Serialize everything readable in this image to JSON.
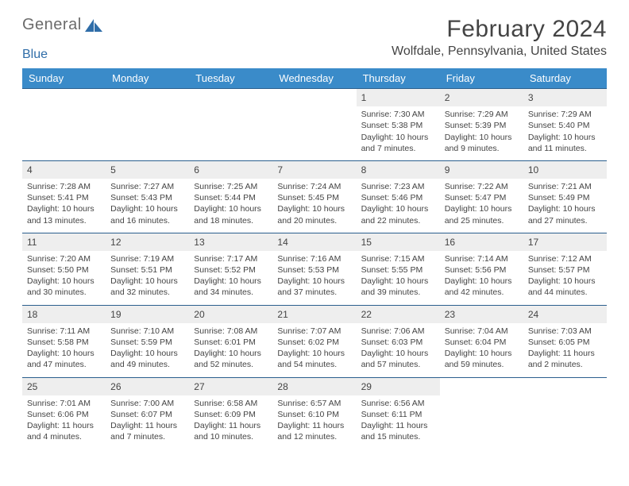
{
  "logo": {
    "text_a": "General",
    "text_b": "Blue"
  },
  "title": "February 2024",
  "location": "Wolfdale, Pennsylvania, United States",
  "colors": {
    "header_bg": "#3a8bc9",
    "header_fg": "#ffffff",
    "cell_border": "#2b5f8e",
    "daynum_bg": "#eeeeee",
    "text": "#444444",
    "logo_text": "#6b6b6b",
    "logo_accent": "#2f6da8"
  },
  "day_headers": [
    "Sunday",
    "Monday",
    "Tuesday",
    "Wednesday",
    "Thursday",
    "Friday",
    "Saturday"
  ],
  "weeks": [
    [
      null,
      null,
      null,
      null,
      {
        "n": "1",
        "sr": "7:30 AM",
        "ss": "5:38 PM",
        "dl": "10 hours and 7 minutes."
      },
      {
        "n": "2",
        "sr": "7:29 AM",
        "ss": "5:39 PM",
        "dl": "10 hours and 9 minutes."
      },
      {
        "n": "3",
        "sr": "7:29 AM",
        "ss": "5:40 PM",
        "dl": "10 hours and 11 minutes."
      }
    ],
    [
      {
        "n": "4",
        "sr": "7:28 AM",
        "ss": "5:41 PM",
        "dl": "10 hours and 13 minutes."
      },
      {
        "n": "5",
        "sr": "7:27 AM",
        "ss": "5:43 PM",
        "dl": "10 hours and 16 minutes."
      },
      {
        "n": "6",
        "sr": "7:25 AM",
        "ss": "5:44 PM",
        "dl": "10 hours and 18 minutes."
      },
      {
        "n": "7",
        "sr": "7:24 AM",
        "ss": "5:45 PM",
        "dl": "10 hours and 20 minutes."
      },
      {
        "n": "8",
        "sr": "7:23 AM",
        "ss": "5:46 PM",
        "dl": "10 hours and 22 minutes."
      },
      {
        "n": "9",
        "sr": "7:22 AM",
        "ss": "5:47 PM",
        "dl": "10 hours and 25 minutes."
      },
      {
        "n": "10",
        "sr": "7:21 AM",
        "ss": "5:49 PM",
        "dl": "10 hours and 27 minutes."
      }
    ],
    [
      {
        "n": "11",
        "sr": "7:20 AM",
        "ss": "5:50 PM",
        "dl": "10 hours and 30 minutes."
      },
      {
        "n": "12",
        "sr": "7:19 AM",
        "ss": "5:51 PM",
        "dl": "10 hours and 32 minutes."
      },
      {
        "n": "13",
        "sr": "7:17 AM",
        "ss": "5:52 PM",
        "dl": "10 hours and 34 minutes."
      },
      {
        "n": "14",
        "sr": "7:16 AM",
        "ss": "5:53 PM",
        "dl": "10 hours and 37 minutes."
      },
      {
        "n": "15",
        "sr": "7:15 AM",
        "ss": "5:55 PM",
        "dl": "10 hours and 39 minutes."
      },
      {
        "n": "16",
        "sr": "7:14 AM",
        "ss": "5:56 PM",
        "dl": "10 hours and 42 minutes."
      },
      {
        "n": "17",
        "sr": "7:12 AM",
        "ss": "5:57 PM",
        "dl": "10 hours and 44 minutes."
      }
    ],
    [
      {
        "n": "18",
        "sr": "7:11 AM",
        "ss": "5:58 PM",
        "dl": "10 hours and 47 minutes."
      },
      {
        "n": "19",
        "sr": "7:10 AM",
        "ss": "5:59 PM",
        "dl": "10 hours and 49 minutes."
      },
      {
        "n": "20",
        "sr": "7:08 AM",
        "ss": "6:01 PM",
        "dl": "10 hours and 52 minutes."
      },
      {
        "n": "21",
        "sr": "7:07 AM",
        "ss": "6:02 PM",
        "dl": "10 hours and 54 minutes."
      },
      {
        "n": "22",
        "sr": "7:06 AM",
        "ss": "6:03 PM",
        "dl": "10 hours and 57 minutes."
      },
      {
        "n": "23",
        "sr": "7:04 AM",
        "ss": "6:04 PM",
        "dl": "10 hours and 59 minutes."
      },
      {
        "n": "24",
        "sr": "7:03 AM",
        "ss": "6:05 PM",
        "dl": "11 hours and 2 minutes."
      }
    ],
    [
      {
        "n": "25",
        "sr": "7:01 AM",
        "ss": "6:06 PM",
        "dl": "11 hours and 4 minutes."
      },
      {
        "n": "26",
        "sr": "7:00 AM",
        "ss": "6:07 PM",
        "dl": "11 hours and 7 minutes."
      },
      {
        "n": "27",
        "sr": "6:58 AM",
        "ss": "6:09 PM",
        "dl": "11 hours and 10 minutes."
      },
      {
        "n": "28",
        "sr": "6:57 AM",
        "ss": "6:10 PM",
        "dl": "11 hours and 12 minutes."
      },
      {
        "n": "29",
        "sr": "6:56 AM",
        "ss": "6:11 PM",
        "dl": "11 hours and 15 minutes."
      },
      null,
      null
    ]
  ],
  "labels": {
    "sunrise": "Sunrise:",
    "sunset": "Sunset:",
    "daylight": "Daylight:"
  }
}
